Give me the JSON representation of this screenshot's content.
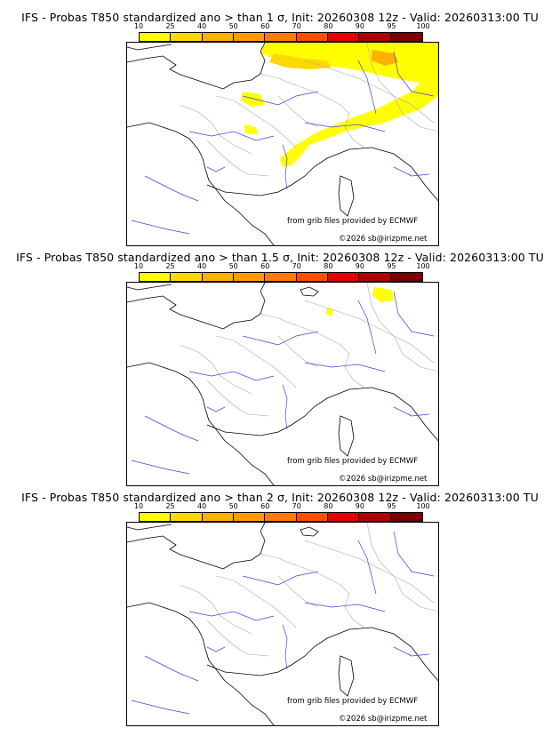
{
  "colorbar": {
    "ticks": [
      "10",
      "25",
      "40",
      "50",
      "60",
      "70",
      "80",
      "90",
      "95",
      "100"
    ],
    "colors": [
      "#ffff00",
      "#ffd800",
      "#ffb200",
      "#ff9a00",
      "#ff7a00",
      "#ff4d00",
      "#e60000",
      "#b00000",
      "#7a0000"
    ]
  },
  "panels": [
    {
      "title": "IFS - Probas T850  standardized ano > than 1 σ, Init: 20260308 12z - Valid: 20260313:00 TU",
      "source": "from grib files provided by ECMWF",
      "copyright": "©2026 sb@irizpme.net",
      "anomaly_fields": [
        "yellow (10–25%) over Belgium, Netherlands, western Germany, Luxembourg",
        "orange (25–40%) near Rhine and NE corner",
        "yellow band along Alps and Rhône valley",
        "yellow spots over Normandy"
      ]
    },
    {
      "title": "IFS - Probas T850  standardized ano > than 1.5 σ, Init: 20260308 12z - Valid: 20260313:00 TU",
      "source": "from grib files provided by ECMWF",
      "copyright": "©2026 sb@irizpme.net",
      "anomaly_fields": [
        "small yellow patch over western Germany",
        "small yellow spot near Lorraine"
      ]
    },
    {
      "title": "IFS - Probas T850  standardized ano > than 2 σ, Init: 20260308 12z - Valid: 20260313:00 TU",
      "source": "from grib files provided by ECMWF",
      "copyright": "©2026 sb@irizpme.net",
      "anomaly_fields": []
    }
  ]
}
